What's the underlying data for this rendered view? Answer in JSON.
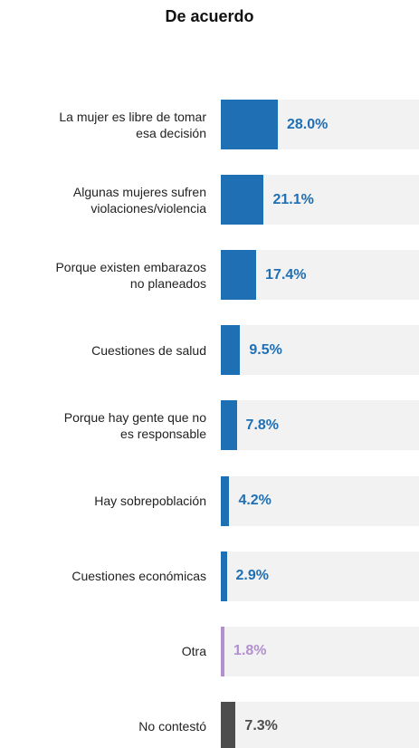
{
  "chart_data": {
    "type": "bar",
    "orientation": "horizontal",
    "title": "De acuerdo",
    "categories": [
      "La mujer es libre de tomar\nesa decisión",
      "Algunas mujeres sufren\nviolaciones/violencia",
      "Porque existen embarazos\nno planeados",
      "Cuestiones de salud",
      "Porque hay gente que no\nes responsable",
      "Hay sobrepoblación",
      "Cuestiones económicas",
      "Otra",
      "No contestó"
    ],
    "values": [
      28.0,
      21.1,
      17.4,
      9.5,
      7.8,
      4.2,
      2.9,
      1.8,
      7.3
    ],
    "value_labels": [
      "28.0%",
      "21.1%",
      "17.4%",
      "9.5%",
      "7.8%",
      "4.2%",
      "2.9%",
      "1.8%",
      "7.3%"
    ],
    "colors": [
      "#1f6fb5",
      "#1f6fb5",
      "#1f6fb5",
      "#1f6fb5",
      "#1f6fb5",
      "#1f6fb5",
      "#1f6fb5",
      "#b38fd0",
      "#4d4d4d"
    ]
  }
}
